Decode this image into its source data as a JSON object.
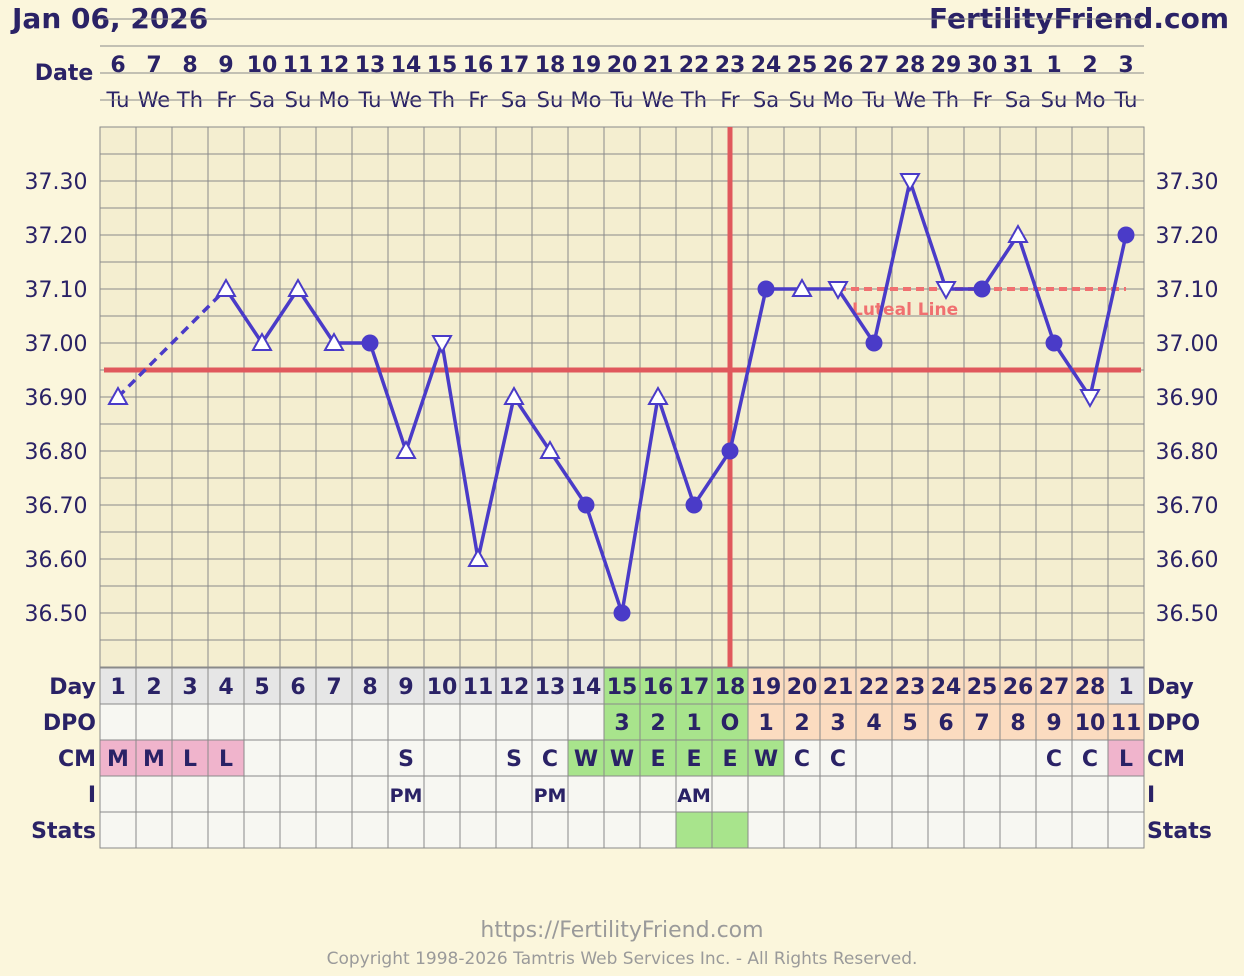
{
  "header": {
    "date": "Jan 06, 2026",
    "site": "FertilityFriend.com"
  },
  "row_labels": {
    "date": "Date",
    "day": "Day",
    "dpo": "DPO",
    "cm": "CM",
    "i": "I",
    "stats": "Stats"
  },
  "columns": {
    "dates": [
      "6",
      "7",
      "8",
      "9",
      "10",
      "11",
      "12",
      "13",
      "14",
      "15",
      "16",
      "17",
      "18",
      "19",
      "20",
      "21",
      "22",
      "23",
      "24",
      "25",
      "26",
      "27",
      "28",
      "29",
      "30",
      "31",
      "1",
      "2",
      "3"
    ],
    "weekdays": [
      "Tu",
      "We",
      "Th",
      "Fr",
      "Sa",
      "Su",
      "Mo",
      "Tu",
      "We",
      "Th",
      "Fr",
      "Sa",
      "Su",
      "Mo",
      "Tu",
      "We",
      "Th",
      "Fr",
      "Sa",
      "Su",
      "Mo",
      "Tu",
      "We",
      "Th",
      "Fr",
      "Sa",
      "Su",
      "Mo",
      "Tu"
    ],
    "cycle_days": [
      "1",
      "2",
      "3",
      "4",
      "5",
      "6",
      "7",
      "8",
      "9",
      "10",
      "11",
      "12",
      "13",
      "14",
      "15",
      "16",
      "17",
      "18",
      "19",
      "20",
      "21",
      "22",
      "23",
      "24",
      "25",
      "26",
      "27",
      "28",
      "1"
    ],
    "dpo": [
      "",
      "",
      "",
      "",
      "",
      "",
      "",
      "",
      "",
      "",
      "",
      "",
      "",
      "",
      "3",
      "2",
      "1",
      "O",
      "1",
      "2",
      "3",
      "4",
      "5",
      "6",
      "7",
      "8",
      "9",
      "10",
      "11"
    ],
    "cm": [
      "M",
      "M",
      "L",
      "L",
      "",
      "",
      "",
      "",
      "S",
      "",
      "",
      "S",
      "C",
      "W",
      "W",
      "E",
      "E",
      "E",
      "W",
      "C",
      "C",
      "",
      "",
      "",
      "",
      "",
      "C",
      "C",
      "L"
    ],
    "intercourse": [
      "",
      "",
      "",
      "",
      "",
      "",
      "",
      "",
      "PM",
      "",
      "",
      "",
      "PM",
      "",
      "",
      "",
      "AM",
      "",
      "",
      "",
      "",
      "",
      "",
      "",
      "",
      "",
      "",
      "",
      ""
    ]
  },
  "y_tick_labels": [
    "37.30",
    "37.20",
    "37.10",
    "37.00",
    "36.90",
    "36.80",
    "36.70",
    "36.60",
    "36.50"
  ],
  "colors": {
    "line": "#4a3bc8",
    "coverline": "#e0585c",
    "menses_pink": "#f0b4cc",
    "fertile_green": "#a8e48c",
    "luteal_peach": "#fbdcc0",
    "day_gray": "#e6e6e6",
    "cell": "#f7f7f2",
    "grid": "#8a8a8a",
    "luteal_line": "#f07070"
  },
  "chart_data": {
    "type": "line",
    "x": [
      "Jan 6",
      "Jan 7",
      "Jan 8",
      "Jan 9",
      "Jan 10",
      "Jan 11",
      "Jan 12",
      "Jan 13",
      "Jan 14",
      "Jan 15",
      "Jan 16",
      "Jan 17",
      "Jan 18",
      "Jan 19",
      "Jan 20",
      "Jan 21",
      "Jan 22",
      "Jan 23",
      "Jan 24",
      "Jan 25",
      "Jan 26",
      "Jan 27",
      "Jan 28",
      "Jan 29",
      "Jan 30",
      "Jan 31",
      "Feb 1",
      "Feb 2",
      "Feb 3"
    ],
    "series": [
      {
        "values": [
          36.9,
          null,
          null,
          37.1,
          37.0,
          37.1,
          37.0,
          37.0,
          36.8,
          37.0,
          36.6,
          36.9,
          36.8,
          36.7,
          36.5,
          36.9,
          36.7,
          36.8,
          37.1,
          37.1,
          37.1,
          37.0,
          37.3,
          37.1,
          37.1,
          37.2,
          37.0,
          36.9,
          37.2
        ],
        "markers": [
          "tri-up",
          "",
          "",
          "tri-up",
          "tri-up",
          "tri-up",
          "tri-up",
          "dot",
          "tri-up",
          "tri-down",
          "tri-up",
          "tri-up",
          "tri-up",
          "dot",
          "dot",
          "tri-up",
          "dot",
          "dot",
          "dot",
          "tri-up",
          "tri-down",
          "dot",
          "tri-down",
          "tri-down",
          "dot",
          "tri-up",
          "dot",
          "tri-down",
          "dot"
        ]
      }
    ],
    "coverline": 36.95,
    "ovulation_date": "Jan 23",
    "luteal_line": {
      "label": "Luteal Line",
      "value": 37.1,
      "from": "Jan 26",
      "to": "Feb 3"
    },
    "ylim": [
      36.4,
      37.4
    ],
    "y_ticks": [
      37.3,
      37.2,
      37.1,
      37.0,
      36.9,
      36.8,
      36.7,
      36.6,
      36.5
    ],
    "grid": true
  },
  "footer": {
    "url": "https://FertilityFriend.com",
    "copyright": "Copyright 1998-2026 Tamtris Web Services Inc. - All Rights Reserved."
  }
}
